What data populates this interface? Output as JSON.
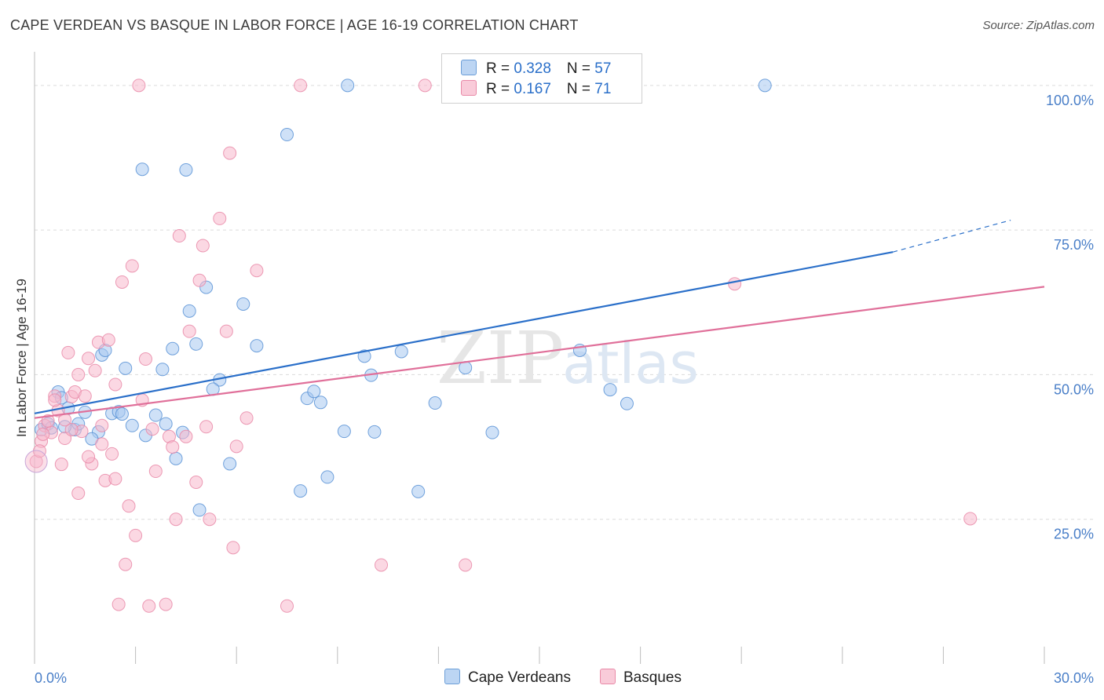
{
  "title": "CAPE VERDEAN VS BASQUE IN LABOR FORCE | AGE 16-19 CORRELATION CHART",
  "source": "Source: ZipAtlas.com",
  "watermark": {
    "zip": "ZIP",
    "atlas": "atlas"
  },
  "legend": {
    "rows": [
      {
        "r_label": "R = ",
        "r_value": "0.328",
        "n_label": "N = ",
        "n_value": "57",
        "color": "#a8c8f0"
      },
      {
        "r_label": "R = ",
        "r_value": "0.167",
        "n_label": "N = ",
        "n_value": "71",
        "color": "#f7b8cc"
      }
    ]
  },
  "bottom_legend": [
    {
      "label": "Cape Verdeans",
      "color": "#a8c8f0"
    },
    {
      "label": "Basques",
      "color": "#f7b8cc"
    }
  ],
  "chart_data": {
    "type": "scatter",
    "ylabel": "In Labor Force | Age 16-19",
    "xlim": [
      0,
      30
    ],
    "ylim": [
      0,
      105
    ],
    "x_tick_labels": [
      "0.0%",
      "30.0%"
    ],
    "y_tick_labels": [
      "25.0%",
      "50.0%",
      "75.0%",
      "100.0%"
    ],
    "y_ticks": [
      25,
      50,
      75,
      100
    ],
    "series": [
      {
        "name": "Cape Verdeans",
        "color": "#5b93d6",
        "fill": "#a8c8f0",
        "trend": {
          "x0": 0,
          "y0": 43.3,
          "x1": 25.5,
          "y1": 71.2,
          "dash_to_x": 29,
          "dash_to_y": 76.7,
          "color": "#2a6fc9"
        },
        "points": [
          [
            0.2,
            40.5
          ],
          [
            0.4,
            41.5
          ],
          [
            0.5,
            40.8
          ],
          [
            0.7,
            47
          ],
          [
            0.8,
            46
          ],
          [
            1.0,
            44.2
          ],
          [
            1.2,
            40.5
          ],
          [
            1.3,
            41.5
          ],
          [
            1.5,
            43.5
          ],
          [
            1.9,
            40.1
          ],
          [
            2.0,
            53.4
          ],
          [
            2.1,
            54.2
          ],
          [
            2.3,
            43.3
          ],
          [
            2.5,
            43.6
          ],
          [
            2.7,
            51.1
          ],
          [
            2.9,
            41.2
          ],
          [
            3.2,
            85.5
          ],
          [
            3.3,
            39.5
          ],
          [
            3.6,
            43
          ],
          [
            3.8,
            50.9
          ],
          [
            3.9,
            41.5
          ],
          [
            4.1,
            54.5
          ],
          [
            4.2,
            35.5
          ],
          [
            4.4,
            40
          ],
          [
            4.5,
            85.4
          ],
          [
            4.6,
            61
          ],
          [
            4.8,
            55.3
          ],
          [
            4.9,
            26.6
          ],
          [
            5.1,
            65.1
          ],
          [
            5.5,
            49.1
          ],
          [
            5.8,
            34.6
          ],
          [
            6.2,
            62.2
          ],
          [
            6.6,
            55
          ],
          [
            7.5,
            91.5
          ],
          [
            7.9,
            29.9
          ],
          [
            8.1,
            45.9
          ],
          [
            8.3,
            47.1
          ],
          [
            8.5,
            45.2
          ],
          [
            8.7,
            32.3
          ],
          [
            9.2,
            40.2
          ],
          [
            9.3,
            100
          ],
          [
            9.8,
            53.2
          ],
          [
            10.0,
            49.9
          ],
          [
            10.1,
            40.1
          ],
          [
            10.9,
            54
          ],
          [
            11.4,
            29.8
          ],
          [
            11.9,
            45.1
          ],
          [
            12.8,
            51.2
          ],
          [
            13.6,
            40
          ],
          [
            16.2,
            54.2
          ],
          [
            17.1,
            47.4
          ],
          [
            17.6,
            45
          ],
          [
            21.7,
            100
          ],
          [
            2.6,
            43.2
          ],
          [
            1.7,
            38.9
          ],
          [
            0.9,
            41
          ],
          [
            5.3,
            47.5
          ]
        ]
      },
      {
        "name": "Basques",
        "color": "#e98aa8",
        "fill": "#f7b8cc",
        "trend": {
          "x0": 0,
          "y0": 42.5,
          "x1": 30,
          "y1": 65.2,
          "color": "#e0709a"
        },
        "points": [
          [
            0.05,
            35
          ],
          [
            0.2,
            38.5
          ],
          [
            0.3,
            41.2
          ],
          [
            0.5,
            40
          ],
          [
            0.6,
            46.3
          ],
          [
            0.7,
            43.8
          ],
          [
            0.8,
            34.5
          ],
          [
            0.9,
            39
          ],
          [
            1.0,
            53.8
          ],
          [
            1.1,
            46.2
          ],
          [
            1.2,
            47
          ],
          [
            1.3,
            29.5
          ],
          [
            1.4,
            40.2
          ],
          [
            1.5,
            46.3
          ],
          [
            1.6,
            52.8
          ],
          [
            1.7,
            34.6
          ],
          [
            1.8,
            50.7
          ],
          [
            1.9,
            55.6
          ],
          [
            2.0,
            38
          ],
          [
            2.1,
            31.7
          ],
          [
            2.2,
            56
          ],
          [
            2.3,
            36.3
          ],
          [
            2.4,
            32
          ],
          [
            2.5,
            10.3
          ],
          [
            2.6,
            66
          ],
          [
            2.7,
            17.2
          ],
          [
            2.8,
            27.3
          ],
          [
            2.9,
            68.8
          ],
          [
            3.0,
            22.2
          ],
          [
            3.2,
            45.6
          ],
          [
            3.3,
            52.7
          ],
          [
            3.4,
            10
          ],
          [
            3.6,
            33.3
          ],
          [
            3.9,
            10.3
          ],
          [
            4.0,
            39.3
          ],
          [
            4.1,
            37.5
          ],
          [
            4.2,
            25
          ],
          [
            4.3,
            74
          ],
          [
            4.5,
            39.3
          ],
          [
            4.6,
            57.5
          ],
          [
            4.8,
            31.4
          ],
          [
            4.9,
            66.3
          ],
          [
            5.0,
            72.3
          ],
          [
            5.1,
            41
          ],
          [
            5.2,
            25
          ],
          [
            5.5,
            77
          ],
          [
            5.7,
            57.5
          ],
          [
            5.8,
            88.3
          ],
          [
            5.9,
            20.1
          ],
          [
            6.0,
            37.6
          ],
          [
            6.3,
            42.5
          ],
          [
            6.6,
            68
          ],
          [
            7.5,
            10
          ],
          [
            7.9,
            100
          ],
          [
            10.3,
            17.1
          ],
          [
            11.6,
            100
          ],
          [
            12.8,
            17.1
          ],
          [
            20.8,
            65.7
          ],
          [
            27.8,
            25.1
          ],
          [
            3.1,
            100
          ],
          [
            0.4,
            42
          ],
          [
            1.1,
            40.5
          ],
          [
            0.15,
            36.8
          ],
          [
            1.6,
            35.8
          ],
          [
            2.4,
            48.3
          ],
          [
            3.5,
            40.6
          ],
          [
            0.9,
            42.2
          ],
          [
            0.6,
            45.6
          ],
          [
            2.0,
            41.2
          ],
          [
            0.25,
            39.7
          ],
          [
            1.3,
            50
          ]
        ]
      }
    ]
  }
}
